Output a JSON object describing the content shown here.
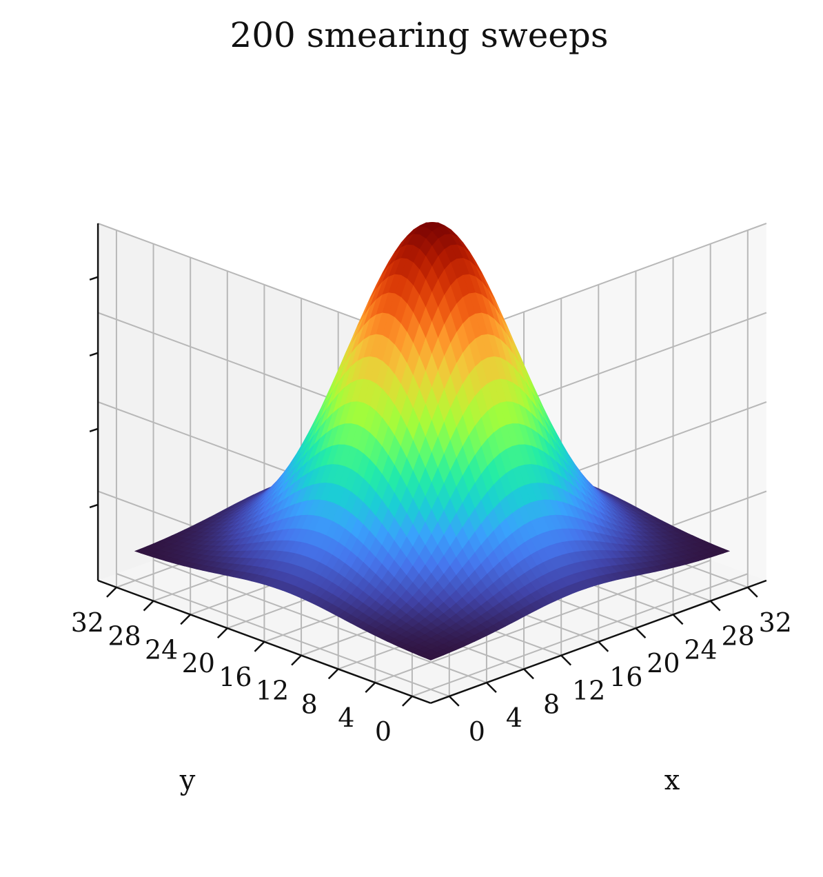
{
  "chart_data": {
    "type": "surface",
    "title": "200 smearing sweeps",
    "xlabel": "x",
    "ylabel": "y",
    "zlabel": "",
    "xlim": [
      0,
      32
    ],
    "ylim": [
      0,
      32
    ],
    "x_ticks": [
      "0",
      "4",
      "8",
      "12",
      "16",
      "20",
      "24",
      "28",
      "32"
    ],
    "y_ticks": [
      "0",
      "4",
      "8",
      "12",
      "16",
      "20",
      "24",
      "28",
      "32"
    ],
    "z_tick_count": 4,
    "z_tick_labels_shown": false,
    "grid": true,
    "legend": false,
    "colormap": "turbo",
    "colormap_stops": [
      "#30123b",
      "#4145ab",
      "#4675ed",
      "#39a2fc",
      "#1bcfd4",
      "#24eca6",
      "#61fc6c",
      "#a4fc3b",
      "#d1e834",
      "#f3c63a",
      "#fe9b2d",
      "#f36315",
      "#d93806",
      "#b11901",
      "#7a0403"
    ],
    "surface": {
      "function": "gaussian peak on a constant base",
      "center": [
        16,
        16
      ],
      "peak_value": 1.0,
      "base_value": 0.08,
      "sigma": 6.5
    }
  }
}
